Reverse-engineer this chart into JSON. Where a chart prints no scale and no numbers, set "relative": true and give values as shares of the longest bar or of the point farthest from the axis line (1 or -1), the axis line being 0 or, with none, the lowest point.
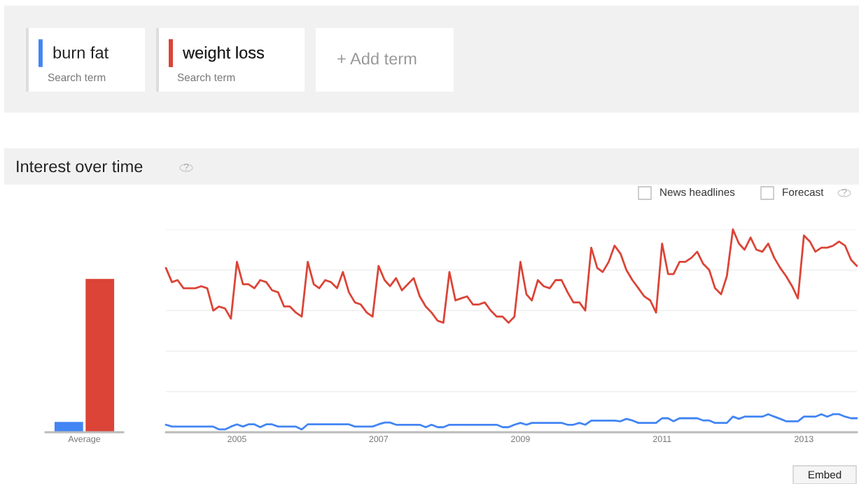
{
  "chart_data": [
    {
      "type": "bar",
      "title": "Interest over time",
      "relative": true,
      "categories": [
        "Average"
      ],
      "series": [
        {
          "color": "#4285f4",
          "values": [
            0.07
          ]
        },
        {
          "color": "#db4437",
          "values": [
            1
          ]
        }
      ],
      "annotations": [
        "Search term",
        "Search term",
        "+ Add term",
        "?"
      ]
    },
    {
      "type": "line",
      "relative": true,
      "grid": "y",
      "legend": "top left",
      "x": [
        "2004-01",
        "2004-02",
        "2004-03",
        "2004-04",
        "2004-05",
        "2004-06",
        "2004-07",
        "2004-08",
        "2004-09",
        "2004-10",
        "2004-11",
        "2004-12",
        "2005-01",
        "2005-02",
        "2005-03",
        "2005-04",
        "2005-05",
        "2005-06",
        "2005-07",
        "2005-08",
        "2005-09",
        "2005-10",
        "2005-11",
        "2005-12",
        "2006-01",
        "2006-02",
        "2006-03",
        "2006-04",
        "2006-05",
        "2006-06",
        "2006-07",
        "2006-08",
        "2006-09",
        "2006-10",
        "2006-11",
        "2006-12",
        "2007-01",
        "2007-02",
        "2007-03",
        "2007-04",
        "2007-05",
        "2007-06",
        "2007-07",
        "2007-08",
        "2007-09",
        "2007-10",
        "2007-11",
        "2007-12",
        "2008-01",
        "2008-02",
        "2008-03",
        "2008-04",
        "2008-05",
        "2008-06",
        "2008-07",
        "2008-08",
        "2008-09",
        "2008-10",
        "2008-11",
        "2008-12",
        "2009-01",
        "2009-02",
        "2009-03",
        "2009-04",
        "2009-05",
        "2009-06",
        "2009-07",
        "2009-08",
        "2009-09",
        "2009-10",
        "2009-11",
        "2009-12",
        "2010-01",
        "2010-02",
        "2010-03",
        "2010-04",
        "2010-05",
        "2010-06",
        "2010-07",
        "2010-08",
        "2010-09",
        "2010-10",
        "2010-11",
        "2010-12",
        "2011-01",
        "2011-02",
        "2011-03",
        "2011-04",
        "2011-05",
        "2011-06",
        "2011-07",
        "2011-08",
        "2011-09",
        "2011-10",
        "2011-11",
        "2011-12",
        "2012-01",
        "2012-02",
        "2012-03",
        "2012-04",
        "2012-05",
        "2012-06",
        "2012-07",
        "2012-08",
        "2012-09",
        "2012-10",
        "2012-11",
        "2012-12",
        "2013-01",
        "2013-02",
        "2013-03",
        "2013-04",
        "2013-05",
        "2013-06",
        "2013-07",
        "2013-08",
        "2013-09",
        "2013-10"
      ],
      "xlim": [
        "2004-01",
        "2013-10"
      ],
      "xticks": [
        "2005",
        "2007",
        "2009",
        "2011",
        "2013"
      ],
      "series": [
        {
          "name": "burn fat",
          "color": "#4285f4",
          "values": [
            0.037,
            0.028,
            0.028,
            0.028,
            0.028,
            0.028,
            0.028,
            0.028,
            0.028,
            0.014,
            0.014,
            0.028,
            0.039,
            0.028,
            0.039,
            0.039,
            0.025,
            0.039,
            0.039,
            0.028,
            0.028,
            0.028,
            0.028,
            0.014,
            0.039,
            0.039,
            0.039,
            0.039,
            0.039,
            0.039,
            0.039,
            0.039,
            0.028,
            0.028,
            0.028,
            0.028,
            0.039,
            0.048,
            0.048,
            0.037,
            0.037,
            0.037,
            0.037,
            0.037,
            0.025,
            0.037,
            0.025,
            0.025,
            0.037,
            0.037,
            0.037,
            0.037,
            0.037,
            0.037,
            0.037,
            0.037,
            0.037,
            0.025,
            0.025,
            0.037,
            0.046,
            0.037,
            0.046,
            0.046,
            0.046,
            0.046,
            0.046,
            0.046,
            0.037,
            0.037,
            0.046,
            0.037,
            0.057,
            0.057,
            0.057,
            0.057,
            0.057,
            0.054,
            0.066,
            0.058,
            0.046,
            0.046,
            0.046,
            0.046,
            0.069,
            0.069,
            0.054,
            0.069,
            0.069,
            0.069,
            0.069,
            0.058,
            0.058,
            0.046,
            0.046,
            0.046,
            0.077,
            0.066,
            0.077,
            0.077,
            0.077,
            0.077,
            0.089,
            0.077,
            0.066,
            0.054,
            0.054,
            0.054,
            0.077,
            0.077,
            0.077,
            0.089,
            0.077,
            0.089,
            0.089,
            0.077,
            0.069,
            0.069
          ]
        },
        {
          "name": "weight loss",
          "color": "#db4437",
          "values": [
            0.81,
            0.74,
            0.75,
            0.71,
            0.71,
            0.71,
            0.72,
            0.71,
            0.6,
            0.62,
            0.61,
            0.56,
            0.84,
            0.73,
            0.73,
            0.71,
            0.75,
            0.74,
            0.7,
            0.69,
            0.62,
            0.62,
            0.59,
            0.57,
            0.84,
            0.73,
            0.71,
            0.75,
            0.74,
            0.71,
            0.79,
            0.69,
            0.64,
            0.63,
            0.59,
            0.57,
            0.82,
            0.75,
            0.72,
            0.76,
            0.7,
            0.73,
            0.76,
            0.67,
            0.62,
            0.59,
            0.55,
            0.54,
            0.79,
            0.65,
            0.66,
            0.67,
            0.63,
            0.63,
            0.64,
            0.6,
            0.57,
            0.57,
            0.54,
            0.57,
            0.84,
            0.68,
            0.65,
            0.75,
            0.72,
            0.71,
            0.75,
            0.75,
            0.69,
            0.64,
            0.64,
            0.6,
            0.91,
            0.81,
            0.79,
            0.84,
            0.92,
            0.88,
            0.8,
            0.75,
            0.71,
            0.67,
            0.65,
            0.59,
            0.93,
            0.78,
            0.78,
            0.84,
            0.84,
            0.86,
            0.89,
            0.83,
            0.8,
            0.71,
            0.68,
            0.77,
            1,
            0.93,
            0.9,
            0.96,
            0.9,
            0.89,
            0.93,
            0.86,
            0.81,
            0.77,
            0.72,
            0.66,
            0.97,
            0.94,
            0.89,
            0.91,
            0.91,
            0.92,
            0.94,
            0.92,
            0.85,
            0.82
          ]
        }
      ],
      "annotations": [
        "News headlines",
        "Forecast",
        "?",
        "Embed"
      ]
    }
  ]
}
